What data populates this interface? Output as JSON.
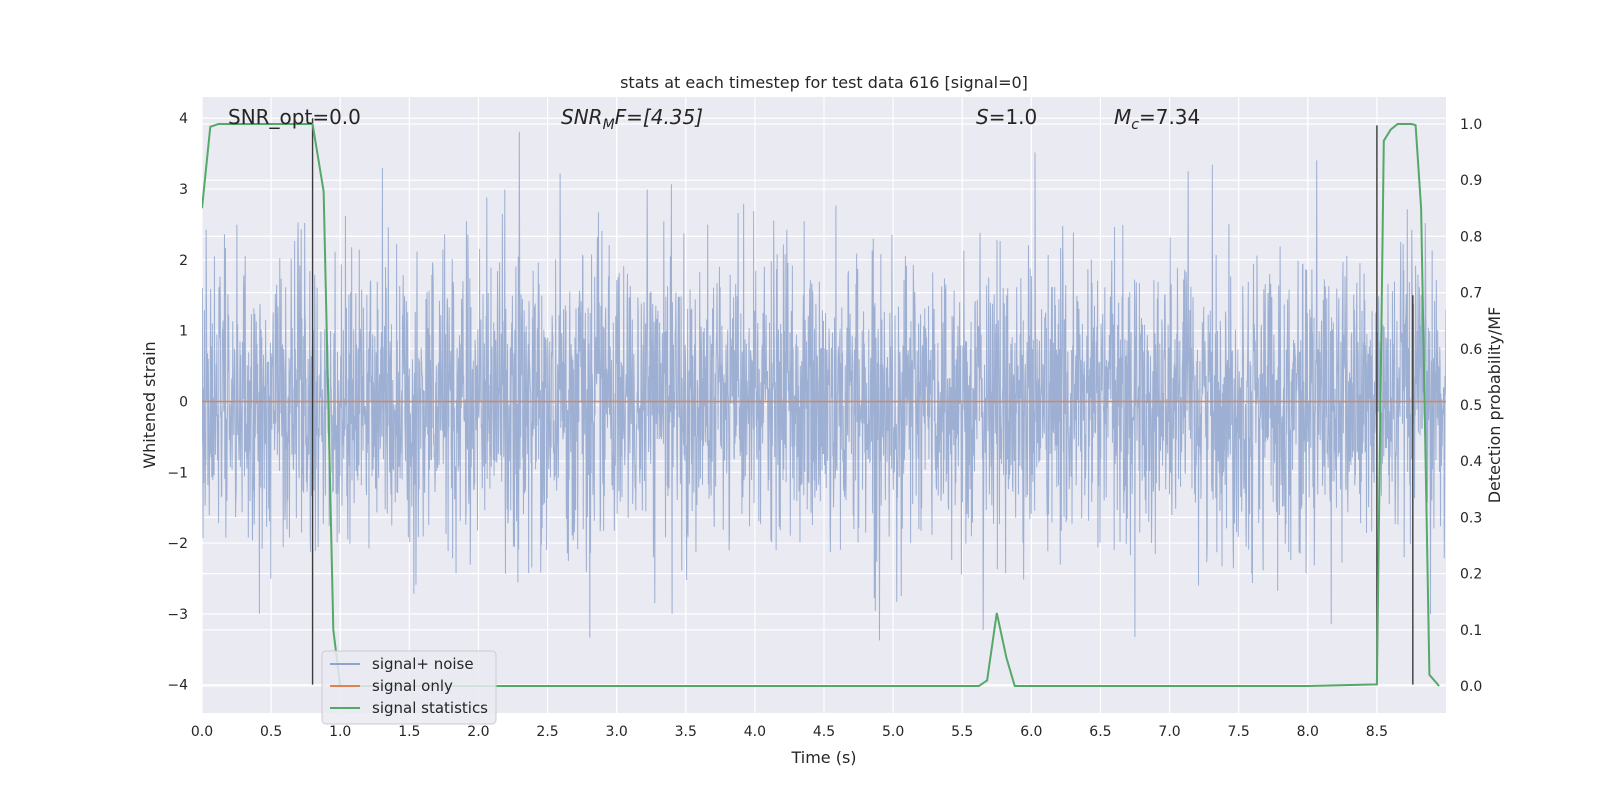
{
  "chart_data": {
    "type": "line",
    "title": "stats at each timestep for test data 616 [signal=0]",
    "xlabel": "Time (s)",
    "ylabel": "Whitened strain",
    "y2label": "Detection probability/MF",
    "xlim": [
      0.0,
      9.0
    ],
    "ylim": [
      -4.4,
      4.3
    ],
    "y2lim": [
      -0.048,
      1.048
    ],
    "x_ticks": [
      "0.0",
      "0.5",
      "1.0",
      "1.5",
      "2.0",
      "2.5",
      "3.0",
      "3.5",
      "4.0",
      "4.5",
      "5.0",
      "5.5",
      "6.0",
      "6.5",
      "7.0",
      "7.5",
      "8.0",
      "8.5"
    ],
    "y_ticks": [
      "4",
      "3",
      "2",
      "1",
      "0",
      "−1",
      "−2",
      "−3",
      "−4"
    ],
    "y2_ticks": [
      "1.0",
      "0.9",
      "0.8",
      "0.7",
      "0.6",
      "0.5",
      "0.4",
      "0.3",
      "0.2",
      "0.1",
      "0.0"
    ],
    "grid": true,
    "legend_position": "bottom-left",
    "annotations": {
      "snr_opt": "SNR_opt=0.0",
      "snr_mf_main": "SNR",
      "snr_mf_sub": "M",
      "snr_mf_rest": "F=[4.35]",
      "s_main": "S",
      "s_rest": "=1.0",
      "mc_main": "M",
      "mc_sub": "c",
      "mc_rest": "=7.34"
    },
    "series": [
      {
        "name": "signal+ noise",
        "color": "#8fa4cc",
        "description_value": "whitened strain noise, approx. gaussian, std ~1, duration 0-9 s"
      },
      {
        "name": "signal only",
        "color": "#dd8452",
        "x": [
          0.0,
          9.0
        ],
        "y": [
          0.0,
          0.0
        ]
      },
      {
        "name": "signal statistics",
        "color": "#55a868",
        "axis": "right",
        "x": [
          0.0,
          0.06,
          0.12,
          0.2,
          0.3,
          0.4,
          0.5,
          0.6,
          0.7,
          0.8,
          0.88,
          0.95,
          1.0,
          1.1,
          2.0,
          3.0,
          4.0,
          5.0,
          5.5,
          5.62,
          5.68,
          5.75,
          5.82,
          5.88,
          6.0,
          7.0,
          8.0,
          8.5,
          8.55,
          8.6,
          8.65,
          8.7,
          8.75,
          8.78,
          8.82,
          8.88,
          8.95
        ],
        "y": [
          0.85,
          0.995,
          1.0,
          1.0,
          1.0,
          1.0,
          1.0,
          1.0,
          1.0,
          1.0,
          0.88,
          0.1,
          0.0,
          0.0,
          0.0,
          0.0,
          0.0,
          0.0,
          0.0,
          0.0,
          0.01,
          0.13,
          0.05,
          0.0,
          0.0,
          0.0,
          0.0,
          0.003,
          0.97,
          0.99,
          1.0,
          1.0,
          1.0,
          0.998,
          0.85,
          0.02,
          0.0
        ]
      }
    ],
    "vlines": [
      {
        "x": 0.8,
        "y_from": -4.0,
        "y_to": 4.0
      },
      {
        "x": 8.5,
        "y_from": -4.0,
        "y_to": 3.9
      },
      {
        "x": 8.76,
        "y_from": -4.0,
        "y_to": 1.5
      }
    ],
    "noise_std": 1.0,
    "noise_peak": 3.9
  }
}
